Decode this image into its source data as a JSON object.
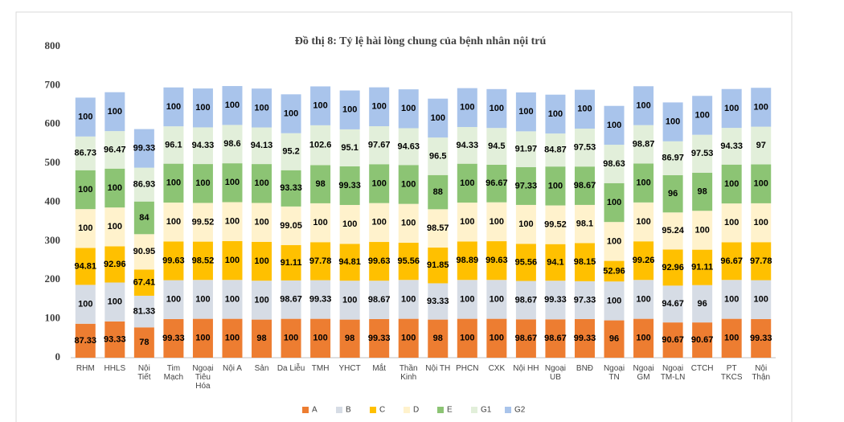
{
  "chart_data": {
    "type": "stacked_bar",
    "title": "Đồ thị 8: Tỷ lệ hài lòng chung của bệnh nhân nội trú",
    "categories": [
      "RHM",
      "HHLS",
      "Nội\nTiết",
      "Tim\nMạch",
      "Ngoại\nTiêu\nHóa",
      "Nội A",
      "Sản",
      "Da Liễu",
      "TMH",
      "YHCT",
      "Mắt",
      "Thần\nKinh",
      "Nội TH",
      "PHCN",
      "CXK",
      "Nội HH",
      "Ngoại\nUB",
      "BNĐ",
      "Ngoại\nTN",
      "Ngoại\nGM",
      "Ngoại\nTM-LN",
      "CTCH",
      "PT\nTKCS",
      "Nội\nThận"
    ],
    "series": [
      {
        "name": "A",
        "color": "#ed7d31",
        "values": [
          87.33,
          93.33,
          78,
          99.33,
          100,
          100,
          98,
          100,
          100,
          98,
          99.33,
          100,
          98,
          100,
          100,
          98.67,
          98.67,
          99.33,
          96,
          100,
          90.67,
          90.67,
          100,
          99.33
        ]
      },
      {
        "name": "B",
        "color": "#d6dce5",
        "values": [
          100,
          100,
          81.33,
          100,
          100,
          100,
          100,
          98.67,
          99.33,
          100,
          98.67,
          100,
          93.33,
          100,
          100,
          98.67,
          99.33,
          97.33,
          100,
          100,
          94.67,
          96,
          100,
          100
        ]
      },
      {
        "name": "C",
        "color": "#ffc000",
        "values": [
          94.81,
          92.96,
          67.41,
          99.63,
          98.52,
          100,
          100,
          91.11,
          97.78,
          94.81,
          99.63,
          95.56,
          91.85,
          98.89,
          99.63,
          95.56,
          94.1,
          98.15,
          52.96,
          99.26,
          92.96,
          91.11,
          96.67,
          97.78
        ]
      },
      {
        "name": "D",
        "color": "#fff2cc",
        "values": [
          100,
          100,
          90.95,
          100,
          99.52,
          100,
          100,
          99.05,
          100,
          100,
          100,
          100,
          98.57,
          100,
          100,
          100,
          99.52,
          98.1,
          100,
          100,
          95.24,
          100,
          100,
          100
        ]
      },
      {
        "name": "E",
        "color": "#8cc474",
        "values": [
          100,
          100,
          84,
          100,
          100,
          100,
          100,
          93.33,
          98,
          99.33,
          100,
          100,
          88,
          100,
          96.67,
          97.33,
          100,
          98.67,
          100,
          100,
          96,
          98,
          100,
          100
        ]
      },
      {
        "name": "G1",
        "color": "#e2efda",
        "values": [
          86.73,
          96.47,
          86.93,
          96.1,
          94.33,
          98.6,
          94.13,
          95.2,
          102.6,
          95.1,
          97.67,
          94.63,
          96.5,
          94.33,
          94.5,
          91.97,
          84.87,
          97.53,
          98.63,
          98.87,
          86.97,
          97.53,
          94.33,
          97
        ]
      },
      {
        "name": "G2",
        "color": "#a9c4eb",
        "values": [
          100,
          100,
          99.33,
          100,
          100,
          100,
          100,
          100,
          100,
          100,
          100,
          100,
          100,
          100,
          100,
          100,
          100,
          100,
          100,
          100,
          100,
          100,
          100,
          100
        ]
      }
    ],
    "ylim": [
      0,
      800
    ],
    "yticks": [
      0,
      100,
      200,
      300,
      400,
      500,
      600,
      700,
      800
    ],
    "grid": false,
    "legend": "bottom"
  }
}
